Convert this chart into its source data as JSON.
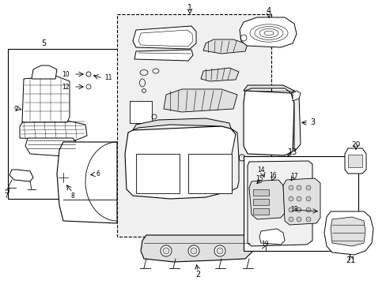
{
  "background_color": "#ffffff",
  "line_color": "#000000",
  "fill_light": "#f0f0f0",
  "fill_medium": "#e0e0e0",
  "fill_dark": "#c8c8c8"
}
